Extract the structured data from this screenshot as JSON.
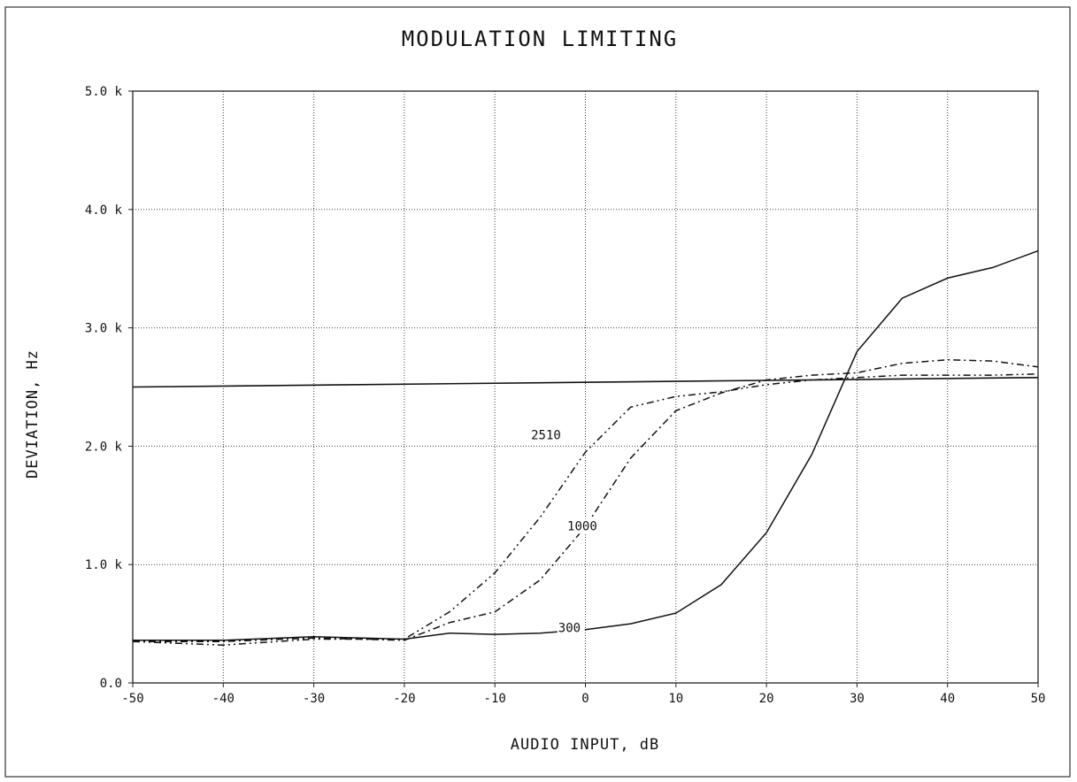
{
  "chart_data": {
    "type": "line",
    "title": "MODULATION LIMITING",
    "xlabel": "AUDIO INPUT, dB",
    "ylabel": "DEVIATION, Hz",
    "xlim": [
      -50,
      50
    ],
    "ylim": [
      0,
      5000
    ],
    "x_ticks": [
      -50,
      -40,
      -30,
      -20,
      -10,
      0,
      10,
      20,
      30,
      40,
      50
    ],
    "x_tick_labels": [
      "-50",
      "-40",
      "-30",
      "-20",
      "-10",
      "0",
      "10",
      "20",
      "30",
      "40",
      "50"
    ],
    "y_ticks": [
      0,
      1000,
      2000,
      3000,
      4000,
      5000
    ],
    "y_tick_labels": [
      "0.0",
      "1.0 k",
      "2.0 k",
      "3.0 k",
      "4.0 k",
      "5.0 k"
    ],
    "grid": true,
    "reference_line": {
      "y": [
        2500,
        2580
      ]
    },
    "series": [
      {
        "name": "300",
        "dash": "solid",
        "label_at": [
          -3,
          430
        ],
        "points": [
          [
            -50,
            360
          ],
          [
            -40,
            360
          ],
          [
            -30,
            390
          ],
          [
            -20,
            370
          ],
          [
            -15,
            420
          ],
          [
            -10,
            410
          ],
          [
            -5,
            420
          ],
          [
            0,
            450
          ],
          [
            5,
            500
          ],
          [
            10,
            590
          ],
          [
            15,
            830
          ],
          [
            20,
            1270
          ],
          [
            25,
            1930
          ],
          [
            30,
            2800
          ],
          [
            35,
            3250
          ],
          [
            40,
            3420
          ],
          [
            45,
            3510
          ],
          [
            50,
            3650
          ]
        ]
      },
      {
        "name": "1000",
        "dash": "8 4 2 4",
        "label_at": [
          -2,
          1290
        ],
        "points": [
          [
            -50,
            350
          ],
          [
            -40,
            350
          ],
          [
            -30,
            380
          ],
          [
            -20,
            360
          ],
          [
            -15,
            510
          ],
          [
            -10,
            600
          ],
          [
            -5,
            870
          ],
          [
            0,
            1320
          ],
          [
            5,
            1900
          ],
          [
            10,
            2300
          ],
          [
            15,
            2450
          ],
          [
            20,
            2560
          ],
          [
            25,
            2600
          ],
          [
            30,
            2620
          ],
          [
            35,
            2700
          ],
          [
            40,
            2730
          ],
          [
            45,
            2720
          ],
          [
            50,
            2670
          ]
        ]
      },
      {
        "name": "2510",
        "dash": "8 4 2 4 2 4",
        "label_at": [
          -6,
          2060
        ],
        "points": [
          [
            -50,
            350
          ],
          [
            -40,
            320
          ],
          [
            -30,
            370
          ],
          [
            -20,
            370
          ],
          [
            -15,
            600
          ],
          [
            -10,
            930
          ],
          [
            -5,
            1400
          ],
          [
            0,
            1950
          ],
          [
            5,
            2330
          ],
          [
            10,
            2420
          ],
          [
            15,
            2460
          ],
          [
            20,
            2520
          ],
          [
            25,
            2560
          ],
          [
            30,
            2580
          ],
          [
            35,
            2600
          ],
          [
            40,
            2600
          ],
          [
            45,
            2600
          ],
          [
            50,
            2610
          ]
        ]
      }
    ]
  }
}
